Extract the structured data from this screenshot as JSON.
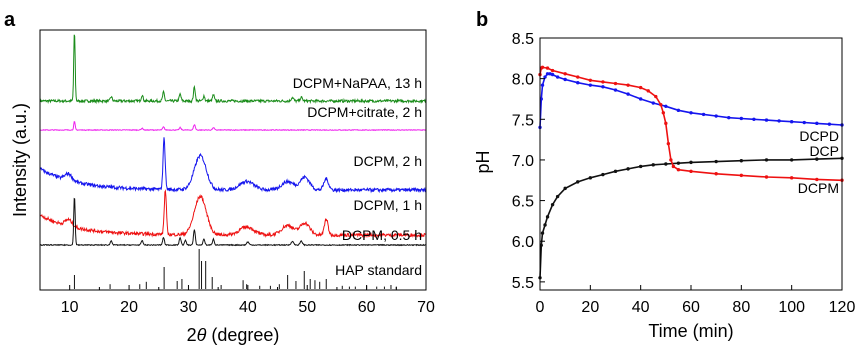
{
  "panels": {
    "a": {
      "letter": "a"
    },
    "b": {
      "letter": "b"
    }
  },
  "chart_data": [
    {
      "type": "line",
      "subtype": "stacked-xrd-patterns",
      "xlabel_prefix": "2",
      "xlabel_symbol": "θ",
      "xlabel_suffix": " (degree)",
      "ylabel": "Intensity (a.u.)",
      "xlim": [
        5,
        70
      ],
      "xticks": [
        10,
        20,
        30,
        40,
        50,
        60,
        70
      ],
      "y_ticks_shown": false,
      "series": [
        {
          "name": "DCPM+NaPAA, 13 h",
          "color": "#1a8c1a",
          "baseline": 0.0,
          "noise": 0.3,
          "peaks": [
            {
              "x": 10.8,
              "h": 8.0,
              "w": 0.12
            },
            {
              "x": 17.0,
              "h": 0.5,
              "w": 0.15
            },
            {
              "x": 22.2,
              "h": 0.7,
              "w": 0.15
            },
            {
              "x": 25.8,
              "h": 1.0,
              "w": 0.15
            },
            {
              "x": 28.6,
              "h": 0.8,
              "w": 0.15
            },
            {
              "x": 31.0,
              "h": 1.6,
              "w": 0.15
            },
            {
              "x": 32.6,
              "h": 0.6,
              "w": 0.15
            },
            {
              "x": 34.2,
              "h": 0.7,
              "w": 0.15
            },
            {
              "x": 47.5,
              "h": 0.4,
              "w": 0.2
            },
            {
              "x": 49.0,
              "h": 0.4,
              "w": 0.2
            }
          ]
        },
        {
          "name": "DCPM+citrate, 2 h",
          "color": "#ee22ee",
          "baseline": 0.0,
          "noise": 0.12,
          "peaks": [
            {
              "x": 10.8,
              "h": 1.4,
              "w": 0.12
            },
            {
              "x": 22.2,
              "h": 0.3,
              "w": 0.15
            },
            {
              "x": 25.8,
              "h": 0.5,
              "w": 0.15
            },
            {
              "x": 28.6,
              "h": 0.4,
              "w": 0.15
            },
            {
              "x": 31.0,
              "h": 0.9,
              "w": 0.15
            },
            {
              "x": 34.2,
              "h": 0.4,
              "w": 0.15
            }
          ]
        },
        {
          "name": "DCPM, 2 h",
          "color": "#1515ee",
          "baseline": 0.0,
          "noise": 0.4,
          "decay": 2.5,
          "peaks": [
            {
              "x": 9.8,
              "h": 0.8,
              "w": 0.6
            },
            {
              "x": 25.9,
              "h": 6.0,
              "w": 0.18
            },
            {
              "x": 32.0,
              "h": 4.0,
              "w": 1.0
            },
            {
              "x": 39.8,
              "h": 1.0,
              "w": 1.2
            },
            {
              "x": 46.7,
              "h": 1.0,
              "w": 1.0
            },
            {
              "x": 49.6,
              "h": 1.5,
              "w": 0.8
            },
            {
              "x": 53.2,
              "h": 1.3,
              "w": 0.4
            }
          ]
        },
        {
          "name": "DCPM, 1 h",
          "color": "#ee1111",
          "baseline": 0.0,
          "noise": 0.4,
          "decay": 2.5,
          "peaks": [
            {
              "x": 9.8,
              "h": 0.8,
              "w": 0.6
            },
            {
              "x": 26.1,
              "h": 5.5,
              "w": 0.18
            },
            {
              "x": 32.0,
              "h": 4.8,
              "w": 1.0
            },
            {
              "x": 39.8,
              "h": 1.0,
              "w": 1.2
            },
            {
              "x": 46.7,
              "h": 1.2,
              "w": 1.0
            },
            {
              "x": 49.6,
              "h": 1.5,
              "w": 0.8
            },
            {
              "x": 53.2,
              "h": 2.0,
              "w": 0.3
            }
          ]
        },
        {
          "name": "DCPM, 0.5 h",
          "color": "#111111",
          "baseline": 0.0,
          "noise": 0.12,
          "peaks": [
            {
              "x": 10.8,
              "h": 6.5,
              "w": 0.12
            },
            {
              "x": 17.0,
              "h": 0.6,
              "w": 0.15
            },
            {
              "x": 22.2,
              "h": 0.6,
              "w": 0.15
            },
            {
              "x": 25.8,
              "h": 1.0,
              "w": 0.15
            },
            {
              "x": 28.6,
              "h": 1.0,
              "w": 0.15
            },
            {
              "x": 29.5,
              "h": 0.6,
              "w": 0.15
            },
            {
              "x": 31.0,
              "h": 2.0,
              "w": 0.15
            },
            {
              "x": 32.6,
              "h": 0.8,
              "w": 0.15
            },
            {
              "x": 34.2,
              "h": 0.8,
              "w": 0.15
            },
            {
              "x": 40.0,
              "h": 0.4,
              "w": 0.2
            },
            {
              "x": 47.5,
              "h": 0.5,
              "w": 0.2
            },
            {
              "x": 49.0,
              "h": 0.5,
              "w": 0.2
            }
          ]
        }
      ],
      "reference": {
        "name": "HAP standard",
        "color": "#111111",
        "sticks": [
          {
            "x": 10.8,
            "h": 0.35
          },
          {
            "x": 16.8,
            "h": 0.12
          },
          {
            "x": 21.8,
            "h": 0.12
          },
          {
            "x": 22.9,
            "h": 0.18
          },
          {
            "x": 25.9,
            "h": 0.55
          },
          {
            "x": 28.1,
            "h": 0.2
          },
          {
            "x": 28.9,
            "h": 0.25
          },
          {
            "x": 31.8,
            "h": 1.0
          },
          {
            "x": 32.2,
            "h": 0.7
          },
          {
            "x": 32.9,
            "h": 0.7
          },
          {
            "x": 34.0,
            "h": 0.3
          },
          {
            "x": 35.5,
            "h": 0.1
          },
          {
            "x": 39.2,
            "h": 0.22
          },
          {
            "x": 39.8,
            "h": 0.12
          },
          {
            "x": 42.0,
            "h": 0.08
          },
          {
            "x": 43.8,
            "h": 0.08
          },
          {
            "x": 45.3,
            "h": 0.12
          },
          {
            "x": 46.7,
            "h": 0.35
          },
          {
            "x": 48.1,
            "h": 0.2
          },
          {
            "x": 49.5,
            "h": 0.45
          },
          {
            "x": 50.5,
            "h": 0.25
          },
          {
            "x": 51.3,
            "h": 0.22
          },
          {
            "x": 52.1,
            "h": 0.18
          },
          {
            "x": 53.2,
            "h": 0.25
          },
          {
            "x": 55.9,
            "h": 0.08
          },
          {
            "x": 57.1,
            "h": 0.06
          },
          {
            "x": 58.1,
            "h": 0.06
          },
          {
            "x": 60.0,
            "h": 0.08
          },
          {
            "x": 61.7,
            "h": 0.06
          },
          {
            "x": 63.0,
            "h": 0.06
          },
          {
            "x": 64.1,
            "h": 0.1
          },
          {
            "x": 65.0,
            "h": 0.06
          }
        ]
      }
    },
    {
      "type": "line",
      "xlabel": "Time (min)",
      "ylabel": "pH",
      "xlim": [
        0,
        120
      ],
      "ylim": [
        5.4,
        8.5
      ],
      "xticks": [
        0,
        20,
        40,
        60,
        80,
        100,
        120
      ],
      "yticks": [
        5.5,
        6.0,
        6.5,
        7.0,
        7.5,
        8.0,
        8.5
      ],
      "series": [
        {
          "name": "DCPD",
          "color": "#1515ee",
          "points": [
            [
              0,
              7.4
            ],
            [
              0.5,
              7.75
            ],
            [
              1,
              7.92
            ],
            [
              2,
              8.02
            ],
            [
              3,
              8.06
            ],
            [
              4,
              8.06
            ],
            [
              5,
              8.05
            ],
            [
              7,
              8.02
            ],
            [
              10,
              7.99
            ],
            [
              15,
              7.95
            ],
            [
              20,
              7.92
            ],
            [
              25,
              7.9
            ],
            [
              30,
              7.86
            ],
            [
              35,
              7.81
            ],
            [
              40,
              7.75
            ],
            [
              45,
              7.7
            ],
            [
              50,
              7.66
            ],
            [
              55,
              7.61
            ],
            [
              60,
              7.58
            ],
            [
              65,
              7.56
            ],
            [
              70,
              7.54
            ],
            [
              75,
              7.52
            ],
            [
              80,
              7.51
            ],
            [
              85,
              7.5
            ],
            [
              90,
              7.49
            ],
            [
              95,
              7.48
            ],
            [
              100,
              7.47
            ],
            [
              105,
              7.46
            ],
            [
              110,
              7.45
            ],
            [
              115,
              7.44
            ],
            [
              120,
              7.43
            ]
          ]
        },
        {
          "name": "DCP",
          "color": "#111111",
          "points": [
            [
              0,
              5.55
            ],
            [
              0.5,
              5.95
            ],
            [
              1,
              6.1
            ],
            [
              2,
              6.2
            ],
            [
              3,
              6.3
            ],
            [
              5,
              6.45
            ],
            [
              7,
              6.55
            ],
            [
              10,
              6.65
            ],
            [
              15,
              6.73
            ],
            [
              20,
              6.78
            ],
            [
              25,
              6.82
            ],
            [
              30,
              6.86
            ],
            [
              35,
              6.89
            ],
            [
              40,
              6.92
            ],
            [
              45,
              6.94
            ],
            [
              50,
              6.95
            ],
            [
              55,
              6.96
            ],
            [
              60,
              6.97
            ],
            [
              70,
              6.98
            ],
            [
              80,
              6.99
            ],
            [
              90,
              7.0
            ],
            [
              100,
              7.0
            ],
            [
              110,
              7.01
            ],
            [
              120,
              7.02
            ]
          ]
        },
        {
          "name": "DCPM",
          "color": "#ee1111",
          "points": [
            [
              0,
              8.05
            ],
            [
              0.5,
              8.13
            ],
            [
              1,
              8.14
            ],
            [
              3,
              8.13
            ],
            [
              5,
              8.1
            ],
            [
              10,
              8.06
            ],
            [
              15,
              8.02
            ],
            [
              20,
              7.98
            ],
            [
              25,
              7.96
            ],
            [
              30,
              7.94
            ],
            [
              35,
              7.92
            ],
            [
              40,
              7.89
            ],
            [
              43,
              7.85
            ],
            [
              46,
              7.78
            ],
            [
              48,
              7.68
            ],
            [
              49,
              7.58
            ],
            [
              50,
              7.45
            ],
            [
              51,
              7.2
            ],
            [
              52,
              7.0
            ],
            [
              53,
              6.92
            ],
            [
              55,
              6.88
            ],
            [
              60,
              6.86
            ],
            [
              70,
              6.83
            ],
            [
              80,
              6.81
            ],
            [
              90,
              6.79
            ],
            [
              100,
              6.78
            ],
            [
              110,
              6.76
            ],
            [
              120,
              6.75
            ]
          ]
        }
      ]
    }
  ]
}
